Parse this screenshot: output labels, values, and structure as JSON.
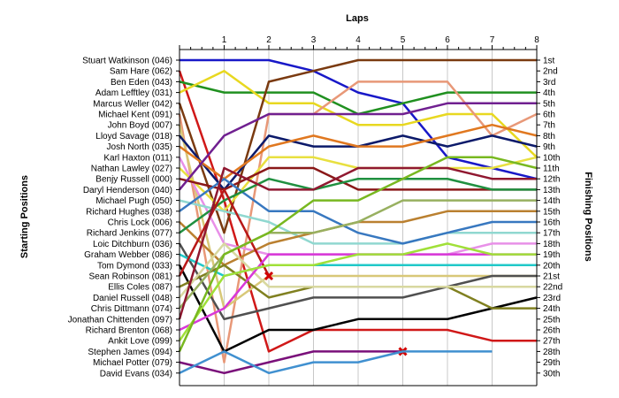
{
  "chart_data": {
    "type": "line",
    "xlabel": "Laps",
    "ylabel_left": "Starting Positions",
    "ylabel_right": "Finishing Positions",
    "x_ticks": [
      1,
      2,
      3,
      4,
      5,
      6,
      7,
      8
    ],
    "ylim": [
      1,
      30
    ],
    "finishing_labels": [
      "1st",
      "2nd",
      "3rd",
      "4th",
      "5th",
      "6th",
      "7th",
      "8th",
      "9th",
      "10th",
      "11th",
      "12th",
      "13th",
      "14th",
      "15th",
      "16th",
      "17th",
      "18th",
      "19th",
      "20th",
      "21st",
      "22nd",
      "23rd",
      "24th",
      "25th",
      "26th",
      "27th",
      "28th",
      "29th",
      "30th"
    ],
    "series": [
      {
        "name": "Stuart Watkinson (046)",
        "color": "#1818c8",
        "values": [
          1,
          1,
          1,
          2,
          4,
          5,
          10,
          11,
          12
        ],
        "dnf": false
      },
      {
        "name": "Sam Hare (062)",
        "color": "#d01818",
        "values": [
          2,
          14,
          28,
          26,
          26,
          26,
          26,
          27,
          27
        ],
        "dnf": false
      },
      {
        "name": "Ben Eden (043)",
        "color": "#209020",
        "values": [
          3,
          4,
          4,
          4,
          6,
          5,
          4,
          4,
          4
        ],
        "dnf": false
      },
      {
        "name": "Adam Lefftley (031)",
        "color": "#e8d820",
        "values": [
          4,
          2,
          5,
          5,
          7,
          7,
          6,
          6,
          10
        ],
        "dnf": false
      },
      {
        "name": "Marcus Weller (042)",
        "color": "#7a3a10",
        "values": [
          5,
          17,
          3,
          2,
          1,
          1,
          1,
          1,
          1
        ],
        "dnf": false
      },
      {
        "name": "Michael Kent (091)",
        "color": "#e89878",
        "values": [
          6,
          29,
          6,
          6,
          3,
          3,
          3,
          8,
          6
        ],
        "dnf": false
      },
      {
        "name": "John Boyd (007)",
        "color": "#d8c878",
        "values": [
          7,
          24,
          21,
          21,
          21,
          21,
          21,
          21,
          21
        ],
        "dnf": false
      },
      {
        "name": "Lloyd Savage (018)",
        "color": "#0c1a6a",
        "values": [
          8,
          13,
          8,
          9,
          9,
          8,
          9,
          8,
          9
        ],
        "dnf": false
      },
      {
        "name": "Josh North (035)",
        "color": "#e07820",
        "values": [
          9,
          12,
          9,
          8,
          9,
          9,
          8,
          7,
          8
        ],
        "dnf": false
      },
      {
        "name": "Karl Haxton (011)",
        "color": "#e890e8",
        "values": [
          10,
          18,
          19,
          19,
          19,
          19,
          19,
          18,
          18
        ],
        "dnf": false
      },
      {
        "name": "Nathan Lawley (027)",
        "color": "#e8e040",
        "values": [
          11,
          15,
          10,
          10,
          11,
          11,
          11,
          11,
          10
        ],
        "dnf": false
      },
      {
        "name": "Benjy Russell (000)",
        "color": "#8a1818",
        "values": [
          12,
          13,
          11,
          11,
          13,
          13,
          13,
          13,
          13
        ],
        "dnf": false
      },
      {
        "name": "Daryl Henderson (040)",
        "color": "#702090",
        "values": [
          13,
          8,
          6,
          6,
          6,
          6,
          5,
          5,
          5
        ],
        "dnf": false
      },
      {
        "name": "Michael Pugh (050)",
        "color": "#90d8d0",
        "values": [
          14,
          15,
          16,
          18,
          18,
          18,
          17,
          17,
          17
        ],
        "dnf": false
      },
      {
        "name": "Richard Hughes (038)",
        "color": "#3878c0",
        "values": [
          15,
          12,
          15,
          15,
          17,
          18,
          17,
          16,
          16
        ],
        "dnf": false
      },
      {
        "name": "Chris Lock (006)",
        "color": "#ba8030",
        "values": [
          16,
          20,
          18,
          17,
          16,
          16,
          15,
          15,
          15
        ],
        "dnf": false
      },
      {
        "name": "Richard Jenkins (077)",
        "color": "#209040",
        "values": [
          17,
          14,
          12,
          13,
          12,
          12,
          12,
          13,
          13
        ],
        "dnf": false
      },
      {
        "name": "Loic Ditchburn (036)",
        "color": "#505050",
        "values": [
          18,
          25,
          24,
          23,
          23,
          23,
          22,
          21,
          21
        ],
        "dnf": false
      },
      {
        "name": "Graham Webber (086)",
        "color": "#20c8c8",
        "values": [
          19,
          21,
          20,
          20,
          20,
          20,
          20,
          20,
          20
        ],
        "dnf": false
      },
      {
        "name": "Tom Dymond (033)",
        "color": "#000000",
        "values": [
          20,
          28,
          26,
          26,
          25,
          25,
          25,
          24,
          23
        ],
        "dnf": false
      },
      {
        "name": "Sean Robinson (081)",
        "color": "#b81818",
        "values": [
          21,
          13,
          21
        ],
        "dnf": true
      },
      {
        "name": "Ellis Coles (087)",
        "color": "#808020",
        "values": [
          22,
          20,
          23,
          22,
          22,
          22,
          22,
          24,
          24
        ],
        "dnf": false
      },
      {
        "name": "Daniel Russell (048)",
        "color": "#d8d8a0",
        "values": [
          23,
          18,
          22,
          22,
          22,
          22,
          22,
          22,
          22
        ],
        "dnf": false
      },
      {
        "name": "Chris Dittmann (074)",
        "color": "#98b060",
        "values": [
          24,
          19,
          17,
          17,
          16,
          14,
          14,
          14,
          14
        ],
        "dnf": false
      },
      {
        "name": "Jonathan Chittenden (097)",
        "color": "#901830",
        "values": [
          25,
          11,
          13,
          13,
          11,
          11,
          11,
          12,
          12
        ],
        "dnf": false
      },
      {
        "name": "Richard Brenton (068)",
        "color": "#d838d8",
        "values": [
          26,
          24,
          19,
          19,
          19,
          19,
          19,
          19,
          19
        ],
        "dnf": false
      },
      {
        "name": "Ankit Love (099)",
        "color": "#a0e038",
        "values": [
          27,
          21,
          20,
          20,
          19,
          19,
          18,
          19,
          19
        ],
        "dnf": false
      },
      {
        "name": "Stephen James (094)",
        "color": "#78b820",
        "values": [
          28,
          19,
          17,
          14,
          14,
          12,
          10,
          10,
          11
        ],
        "dnf": false
      },
      {
        "name": "Michael Potter (079)",
        "color": "#7a107a",
        "values": [
          29,
          30,
          29,
          28,
          28,
          28
        ],
        "dnf": true
      },
      {
        "name": "David Evans (034)",
        "color": "#4090d0",
        "values": [
          30,
          28,
          30,
          29,
          29,
          28,
          28,
          28
        ],
        "dnf": false
      }
    ]
  }
}
